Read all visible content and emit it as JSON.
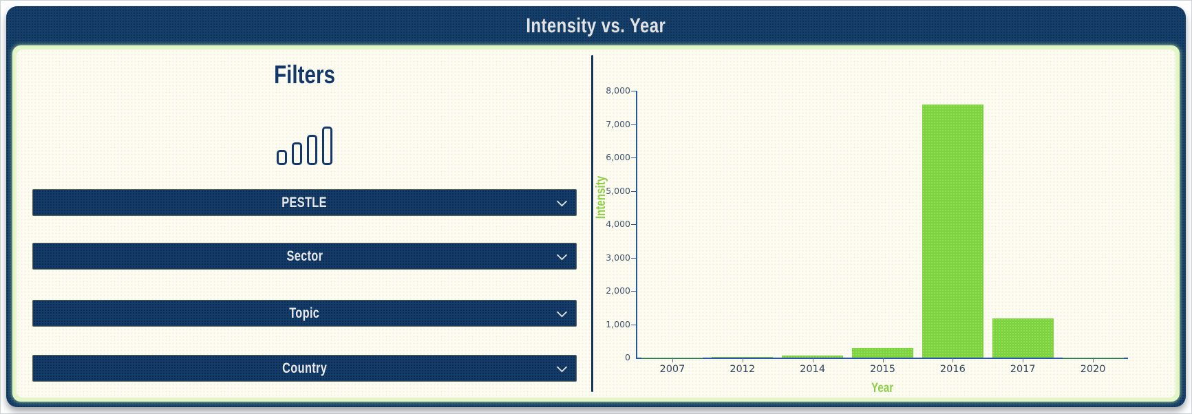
{
  "header": {
    "title": "Intensity vs. Year"
  },
  "filters": {
    "title": "Filters",
    "icon": "bar-chart-icon",
    "dropdowns": [
      {
        "label": "PESTLE"
      },
      {
        "label": "Sector"
      },
      {
        "label": "Topic"
      },
      {
        "label": "Country"
      }
    ]
  },
  "chart_data": {
    "type": "bar",
    "title": "Intensity vs. Year",
    "categories": [
      "2007",
      "2012",
      "2014",
      "2015",
      "2016",
      "2017",
      "2020"
    ],
    "values": [
      10,
      20,
      55,
      290,
      7590,
      1175,
      5
    ],
    "xlabel": "Year",
    "ylabel": "Intensity",
    "ylim": [
      0,
      8000
    ],
    "ytick_step": 1000,
    "grid": false,
    "legend": false,
    "bar_color": "#7CD340"
  },
  "colors": {
    "navy": "#15406C",
    "panel_border_green": "#E2F6C8",
    "content_background": "#FCFCF4",
    "bar_green": "#7CD340",
    "axis_title_green": "#8FCE49",
    "axis_line_blue": "#2558A0",
    "tick_label": "#42536B",
    "header_text": "#E3E3E3"
  }
}
